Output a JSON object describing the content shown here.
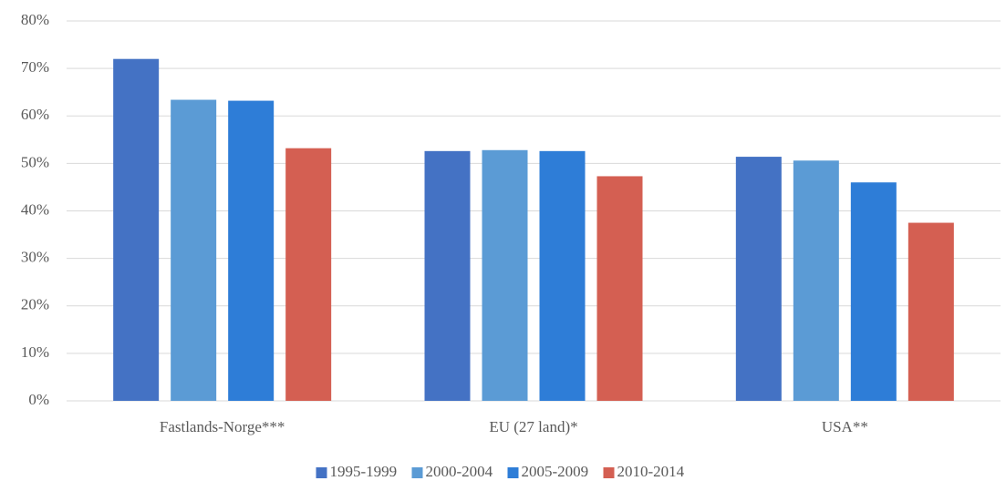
{
  "chart_data": {
    "type": "bar",
    "categories": [
      "Fastlands-Norge***",
      "EU (27 land)*",
      "USA**"
    ],
    "series": [
      {
        "name": "1995-1999",
        "color": "#4472c4",
        "values": [
          72,
          52.6,
          51.4
        ]
      },
      {
        "name": "2000-2004",
        "color": "#5b9bd5",
        "values": [
          63.4,
          52.8,
          50.6
        ]
      },
      {
        "name": "2005-2009",
        "color": "#2e7dd7",
        "values": [
          63.2,
          52.6,
          46
        ]
      },
      {
        "name": "2010-2014",
        "color": "#d45f52",
        "values": [
          53.2,
          47.3,
          37.5
        ]
      }
    ],
    "ylim": [
      0,
      80
    ],
    "yticks": [
      {
        "value": 0,
        "label": "0%"
      },
      {
        "value": 10,
        "label": "10%"
      },
      {
        "value": 20,
        "label": "20%"
      },
      {
        "value": 30,
        "label": "30%"
      },
      {
        "value": 40,
        "label": "40%"
      },
      {
        "value": 50,
        "label": "50%"
      },
      {
        "value": 60,
        "label": "60%"
      },
      {
        "value": 70,
        "label": "70%"
      },
      {
        "value": 80,
        "label": "80%"
      }
    ],
    "grid": true,
    "legend": "bottom"
  }
}
